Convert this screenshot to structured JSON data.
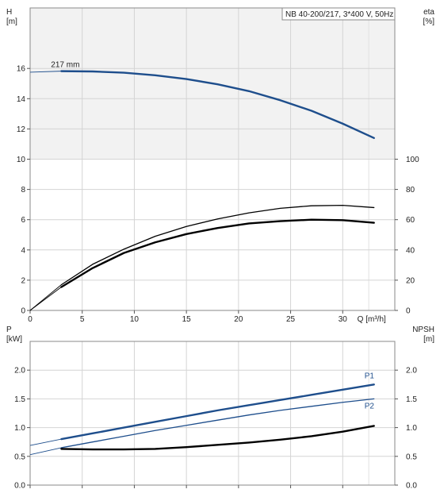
{
  "chart_data": [
    {
      "type": "line",
      "title": "NB 40-200/217, 3*400 V, 50Hz",
      "x_axis": {
        "label": "Q [m³/h]",
        "range": [
          0,
          35
        ],
        "ticks": [
          0,
          5,
          10,
          15,
          20,
          25,
          30
        ],
        "tick_labels": [
          "0",
          "5",
          "10",
          "15",
          "20",
          "25",
          "30"
        ]
      },
      "left_axis": {
        "label": "H",
        "unit": "[m]",
        "range": [
          0,
          20
        ],
        "ticks": [
          0,
          2,
          4,
          6,
          8,
          10,
          12,
          14,
          16
        ],
        "tick_labels": [
          "0",
          "2",
          "4",
          "6",
          "8",
          "10",
          "12",
          "14",
          "16"
        ]
      },
      "right_axis": {
        "label": "eta",
        "unit": "[%]",
        "range": [
          0,
          200
        ],
        "ticks": [
          0,
          20,
          40,
          60,
          80,
          100
        ],
        "tick_labels": [
          "0",
          "20",
          "40",
          "60",
          "80",
          "100"
        ]
      },
      "grid": true,
      "series": [
        {
          "name": "217 mm",
          "axis": "left",
          "color": "#1e4e8c",
          "x": [
            0,
            3,
            6,
            9,
            12,
            15,
            18,
            21,
            24,
            27,
            30,
            33
          ],
          "y": [
            15.75,
            15.82,
            15.8,
            15.72,
            15.55,
            15.3,
            14.95,
            14.5,
            13.9,
            13.2,
            12.35,
            11.4
          ]
        },
        {
          "axis": "right",
          "color": "#000000",
          "x": [
            0,
            3,
            6,
            9,
            12,
            15,
            18,
            21,
            24,
            27,
            30,
            33
          ],
          "y": [
            0,
            15.5,
            28,
            38,
            45,
            50.5,
            54.5,
            57.5,
            59,
            60,
            59.7,
            58
          ]
        },
        {
          "axis": "left",
          "color": "#000000",
          "x": [
            0,
            3,
            6,
            9,
            12,
            15,
            18,
            21,
            24,
            27,
            30,
            33
          ],
          "y": [
            0,
            1.7,
            3.05,
            4.05,
            4.9,
            5.55,
            6.05,
            6.45,
            6.75,
            6.92,
            6.95,
            6.8
          ]
        }
      ]
    },
    {
      "type": "line",
      "x_axis": {
        "range": [
          0,
          35
        ],
        "ticks": [
          0,
          5,
          10,
          15,
          20,
          25,
          30
        ]
      },
      "left_axis": {
        "label": "P",
        "unit": "[kW]",
        "range": [
          0,
          2.5
        ],
        "ticks": [
          0,
          0.5,
          1,
          1.5,
          2
        ],
        "tick_labels": [
          "0.0",
          "0.5",
          "1.0",
          "1.5",
          "2.0"
        ]
      },
      "right_axis": {
        "label": "NPSH",
        "unit": "[m]",
        "range": [
          0,
          2.5
        ],
        "ticks": [
          0,
          0.5,
          1,
          1.5,
          2
        ],
        "tick_labels": [
          "0.0",
          "0.5",
          "1.0",
          "1.5",
          "2.0"
        ]
      },
      "grid": true,
      "series": [
        {
          "name": "P1",
          "axis": "left",
          "color": "#1e4e8c",
          "x": [
            0,
            3,
            6,
            9,
            12,
            15,
            18,
            21,
            24,
            27,
            30,
            33
          ],
          "y": [
            0.69,
            0.8,
            0.9,
            1.0,
            1.1,
            1.2,
            1.3,
            1.39,
            1.48,
            1.57,
            1.66,
            1.75
          ]
        },
        {
          "name": "P2",
          "axis": "left",
          "color": "#1e4e8c",
          "x": [
            0,
            3,
            6,
            9,
            12,
            15,
            18,
            21,
            24,
            27,
            30,
            33
          ],
          "y": [
            0.53,
            0.65,
            0.75,
            0.85,
            0.95,
            1.04,
            1.13,
            1.22,
            1.3,
            1.37,
            1.44,
            1.5
          ]
        },
        {
          "axis": "right",
          "color": "#000000",
          "x": [
            3,
            6,
            9,
            12,
            15,
            18,
            21,
            24,
            27,
            30,
            33
          ],
          "y": [
            0.63,
            0.62,
            0.62,
            0.63,
            0.66,
            0.7,
            0.74,
            0.79,
            0.85,
            0.93,
            1.03
          ]
        }
      ]
    }
  ]
}
